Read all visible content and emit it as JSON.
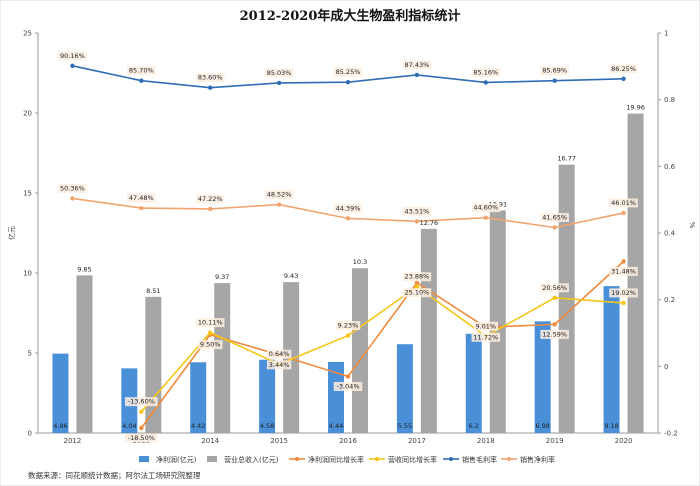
{
  "chart_data": {
    "type": "bar",
    "title": "2012-2020年成大生物盈利指标统计",
    "categories": [
      "2012",
      "2013",
      "2014",
      "2015",
      "2016",
      "2017",
      "2018",
      "2019",
      "2020"
    ],
    "y_left": {
      "label": "亿元",
      "ylim": [
        0,
        25
      ],
      "ticks": [
        "0",
        "5",
        "10",
        "15",
        "20",
        "25"
      ]
    },
    "y_right": {
      "label": "%",
      "ylim": [
        -0.2,
        1.0
      ],
      "ticks": [
        "-0.2",
        "0",
        "0.2",
        "0.4",
        "0.6",
        "0.8",
        "1"
      ]
    },
    "series": [
      {
        "name": "净利润(亿元)",
        "type": "bar",
        "axis": "left",
        "color": "#4a90d9",
        "values": [
          4.96,
          4.04,
          4.42,
          4.58,
          4.44,
          5.55,
          6.2,
          6.98,
          9.18
        ],
        "labels": [
          "4.96",
          "4.04",
          "4.42",
          "4.58",
          "4.44",
          "5.55",
          "6.2",
          "6.98",
          "9.18"
        ]
      },
      {
        "name": "营业总收入(亿元)",
        "type": "bar",
        "axis": "left",
        "color": "#a6a6a6",
        "values": [
          9.85,
          8.51,
          9.37,
          9.43,
          10.3,
          12.76,
          13.91,
          16.77,
          19.96
        ],
        "labels": [
          "9.85",
          "8.51",
          "9.37",
          "9.43",
          "10.3",
          "12.76",
          "13.91",
          "16.77",
          "19.96"
        ]
      },
      {
        "name": "净利润同比增长率",
        "type": "line",
        "axis": "right",
        "color": "#f08a3c",
        "values": [
          null,
          -0.185,
          0.095,
          0.0344,
          -0.0304,
          0.251,
          0.1172,
          0.1259,
          0.3148
        ],
        "labels": [
          "",
          "-18.50%",
          "9.50%",
          "3.44%",
          "-3.04%",
          "25.10%",
          "11.72%",
          "12.59%",
          "31.48%"
        ]
      },
      {
        "name": "营收同比增长率",
        "type": "line",
        "axis": "right",
        "color": "#f5c518",
        "values": [
          null,
          -0.136,
          0.1011,
          0.0064,
          0.0923,
          0.2388,
          0.0901,
          0.2056,
          0.1902
        ],
        "labels": [
          "",
          "-13.60%",
          "10.11%",
          "0.64%",
          "9.23%",
          "23.88%",
          "9.01%",
          "20.56%",
          "19.02%"
        ]
      },
      {
        "name": "销售毛利率",
        "type": "line",
        "axis": "right",
        "color": "#2f6db5",
        "values": [
          0.9016,
          0.857,
          0.836,
          0.8503,
          0.8525,
          0.8743,
          0.8516,
          0.8569,
          0.8625
        ],
        "labels": [
          "90.16%",
          "85.70%",
          "83.60%",
          "85.03%",
          "85.25%",
          "87.43%",
          "85.16%",
          "85.69%",
          "86.25%"
        ]
      },
      {
        "name": "销售净利率",
        "type": "line",
        "axis": "right",
        "color": "#f2a46e",
        "values": [
          0.5036,
          0.4748,
          0.4722,
          0.4852,
          0.4439,
          0.4351,
          0.446,
          0.4165,
          0.4601
        ],
        "labels": [
          "50.36%",
          "47.48%",
          "47.22%",
          "48.52%",
          "44.39%",
          "43.51%",
          "44.60%",
          "41.65%",
          "46.01%"
        ]
      }
    ],
    "legend_position": "bottom",
    "grid": false
  },
  "source_note": "数据来源：同花顺统计数据；阿尔法工场研究院整理"
}
